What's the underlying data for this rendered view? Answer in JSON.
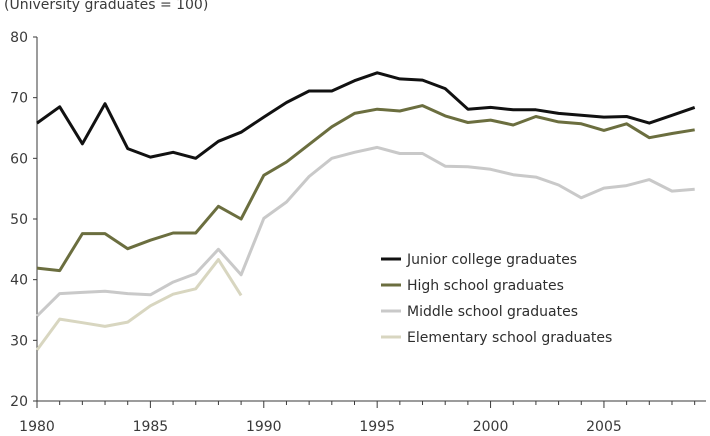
{
  "chart_data": {
    "type": "line",
    "unit_note": "(University graduates = 100)",
    "title": "",
    "xlabel": "",
    "ylabel": "",
    "xlim": [
      1980,
      2009.5
    ],
    "ylim": [
      20,
      80
    ],
    "x_ticks": [
      1980,
      1985,
      1990,
      1995,
      2000,
      2005
    ],
    "y_ticks": [
      20,
      30,
      40,
      50,
      60,
      70,
      80
    ],
    "grid": false,
    "legend_position": "center-right",
    "series": [
      {
        "name": "Junior college graduates",
        "color": "#111111",
        "x": [
          1980,
          1981,
          1982,
          1983,
          1984,
          1985,
          1986,
          1987,
          1988,
          1989,
          1990,
          1991,
          1992,
          1993,
          1994,
          1995,
          1996,
          1997,
          1998,
          1999,
          2000,
          2001,
          2002,
          2003,
          2004,
          2005,
          2006,
          2007,
          2008,
          2009
        ],
        "values": [
          65.8,
          68.5,
          62.4,
          69.0,
          61.6,
          60.2,
          61.0,
          60.0,
          62.8,
          64.3,
          66.8,
          69.2,
          71.1,
          71.1,
          72.8,
          74.1,
          73.1,
          72.9,
          71.5,
          68.1,
          68.4,
          68.0,
          68.0,
          67.4,
          67.1,
          66.8,
          66.9,
          65.8,
          67.1,
          68.4
        ]
      },
      {
        "name": "High school graduates",
        "color": "#6b6e3f",
        "x": [
          1980,
          1981,
          1982,
          1983,
          1984,
          1985,
          1986,
          1987,
          1988,
          1989,
          1990,
          1991,
          1992,
          1993,
          1994,
          1995,
          1996,
          1997,
          1998,
          1999,
          2000,
          2001,
          2002,
          2003,
          2004,
          2005,
          2006,
          2007,
          2008,
          2009
        ],
        "values": [
          41.9,
          41.5,
          47.6,
          47.6,
          45.1,
          46.5,
          47.7,
          47.7,
          52.1,
          50.0,
          57.2,
          59.4,
          62.3,
          65.2,
          67.4,
          68.1,
          67.8,
          68.7,
          67.0,
          65.9,
          66.3,
          65.5,
          66.9,
          66.0,
          65.7,
          64.6,
          65.7,
          63.4,
          64.1,
          64.7
        ]
      },
      {
        "name": "Middle school graduates",
        "color": "#c9c9c9",
        "x": [
          1980,
          1981,
          1982,
          1983,
          1984,
          1985,
          1986,
          1987,
          1988,
          1989,
          1990,
          1991,
          1992,
          1993,
          1994,
          1995,
          1996,
          1997,
          1998,
          1999,
          2000,
          2001,
          2002,
          2003,
          2004,
          2005,
          2006,
          2007,
          2008,
          2009
        ],
        "values": [
          34.0,
          37.7,
          37.9,
          38.1,
          37.7,
          37.5,
          39.6,
          41.0,
          45.0,
          40.8,
          50.1,
          52.8,
          57.0,
          60.0,
          61.0,
          61.8,
          60.8,
          60.8,
          58.7,
          58.6,
          58.2,
          57.3,
          56.9,
          55.6,
          53.5,
          55.1,
          55.5,
          56.5,
          54.6,
          54.9
        ]
      },
      {
        "name": "Elementary school graduates",
        "color": "#d8d6c0",
        "x": [
          1980,
          1981,
          1982,
          1983,
          1984,
          1985,
          1986,
          1987,
          1988,
          1989
        ],
        "values": [
          28.4,
          33.5,
          32.9,
          32.3,
          33.0,
          35.7,
          37.6,
          38.5,
          43.3,
          37.4
        ]
      }
    ]
  }
}
